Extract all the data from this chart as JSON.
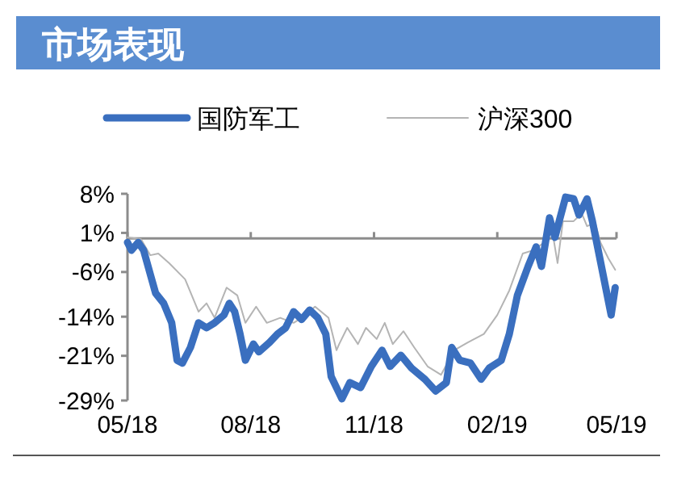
{
  "chart_data": {
    "type": "line",
    "title": "市场表现",
    "legend": "top",
    "grid": false,
    "xlim": [
      "2018-05-01",
      "2019-05-01"
    ],
    "xticks": [
      {
        "value": "2018-05-01",
        "label": "05/18"
      },
      {
        "value": "2018-08-01",
        "label": "08/18"
      },
      {
        "value": "2018-11-01",
        "label": "11/18"
      },
      {
        "value": "2019-02-01",
        "label": "02/19"
      },
      {
        "value": "2019-05-01",
        "label": "05/19"
      }
    ],
    "ylim": [
      -29,
      8
    ],
    "yticks": [
      {
        "value": 8,
        "label": "8%"
      },
      {
        "value": 1,
        "label": "1%"
      },
      {
        "value": -6,
        "label": "-6%"
      },
      {
        "value": -14,
        "label": "-14%"
      },
      {
        "value": -21,
        "label": "-21%"
      },
      {
        "value": -29,
        "label": "-29%"
      }
    ],
    "series": [
      {
        "name": "国防军工",
        "color": "#3a6fbf",
        "x": [
          "2018-05-01",
          "2018-05-04",
          "2018-05-09",
          "2018-05-13",
          "2018-05-18",
          "2018-05-22",
          "2018-05-28",
          "2018-06-03",
          "2018-06-07",
          "2018-06-11",
          "2018-06-17",
          "2018-06-23",
          "2018-06-29",
          "2018-07-05",
          "2018-07-12",
          "2018-07-16",
          "2018-07-20",
          "2018-07-24",
          "2018-07-28",
          "2018-08-03",
          "2018-08-07",
          "2018-08-15",
          "2018-08-21",
          "2018-08-27",
          "2018-09-02",
          "2018-09-08",
          "2018-09-14",
          "2018-09-20",
          "2018-09-26",
          "2018-09-30",
          "2018-10-08",
          "2018-10-14",
          "2018-10-22",
          "2018-10-30",
          "2018-11-07",
          "2018-11-13",
          "2018-11-21",
          "2018-11-29",
          "2018-12-09",
          "2018-12-17",
          "2018-12-25",
          "2018-12-29",
          "2019-01-04",
          "2019-01-12",
          "2019-01-20",
          "2019-01-26",
          "2019-02-04",
          "2019-02-10",
          "2019-02-16",
          "2019-02-24",
          "2019-03-02",
          "2019-03-06",
          "2019-03-12",
          "2019-03-16",
          "2019-03-24",
          "2019-03-30",
          "2019-04-03",
          "2019-04-09",
          "2019-04-13",
          "2019-04-19",
          "2019-04-27",
          "2019-04-30"
        ],
        "values": [
          -0.7,
          -2.1,
          -0.7,
          -2.1,
          -6.4,
          -9.8,
          -11.6,
          -15.1,
          -21.8,
          -22.3,
          -19.5,
          -15.1,
          -16,
          -15.1,
          -13.7,
          -11.6,
          -13.1,
          -17.1,
          -21.8,
          -18.9,
          -20.3,
          -18.6,
          -17.1,
          -16,
          -13.1,
          -14.5,
          -12.8,
          -14.2,
          -17.1,
          -24.7,
          -28.7,
          -25.8,
          -26.7,
          -22.9,
          -20,
          -22.9,
          -20.9,
          -23.2,
          -25.2,
          -27.3,
          -25.8,
          -19.5,
          -21.8,
          -22.3,
          -25.2,
          -23.2,
          -21.8,
          -17.1,
          -10.2,
          -5,
          -1.5,
          -5,
          3.7,
          0.2,
          7.4,
          7.1,
          4.2,
          7.1,
          3.1,
          -4.1,
          -13.7,
          -8.8
        ]
      },
      {
        "name": "沪深300",
        "color": "#b4b4b4",
        "x": [
          "2018-05-01",
          "2018-05-11",
          "2018-05-18",
          "2018-05-24",
          "2018-06-01",
          "2018-06-13",
          "2018-06-23",
          "2018-06-29",
          "2018-07-05",
          "2018-07-14",
          "2018-07-22",
          "2018-07-28",
          "2018-08-05",
          "2018-08-13",
          "2018-08-23",
          "2018-09-02",
          "2018-09-08",
          "2018-09-18",
          "2018-09-28",
          "2018-10-04",
          "2018-10-06",
          "2018-10-12",
          "2018-10-20",
          "2018-10-26",
          "2018-11-03",
          "2018-11-09",
          "2018-11-15",
          "2018-11-23",
          "2018-12-01",
          "2018-12-11",
          "2018-12-21",
          "2018-12-31",
          "2019-01-10",
          "2019-01-22",
          "2019-02-01",
          "2019-02-10",
          "2019-02-20",
          "2019-02-28",
          "2019-03-08",
          "2019-03-14",
          "2019-03-18",
          "2019-03-22",
          "2019-03-30",
          "2019-04-05",
          "2019-04-09",
          "2019-04-15",
          "2019-04-19",
          "2019-04-25",
          "2019-04-30"
        ],
        "values": [
          0.2,
          -0.1,
          -3,
          -2.7,
          -4.4,
          -7.3,
          -13.1,
          -11.6,
          -14.2,
          -8.8,
          -10.2,
          -15.1,
          -12.2,
          -15.1,
          -14.2,
          -15.1,
          -14.2,
          -12.2,
          -14.2,
          -20,
          -18.9,
          -16,
          -18.9,
          -16,
          -18,
          -15.1,
          -18.9,
          -16.6,
          -19.5,
          -22.9,
          -24.4,
          -20,
          -18.6,
          -17.1,
          -13.7,
          -9.3,
          -2.7,
          -2.1,
          -0.7,
          1.4,
          -4.4,
          3.1,
          3.1,
          4.5,
          2.2,
          2.8,
          -0.7,
          -3.6,
          -5.6
        ]
      }
    ]
  }
}
